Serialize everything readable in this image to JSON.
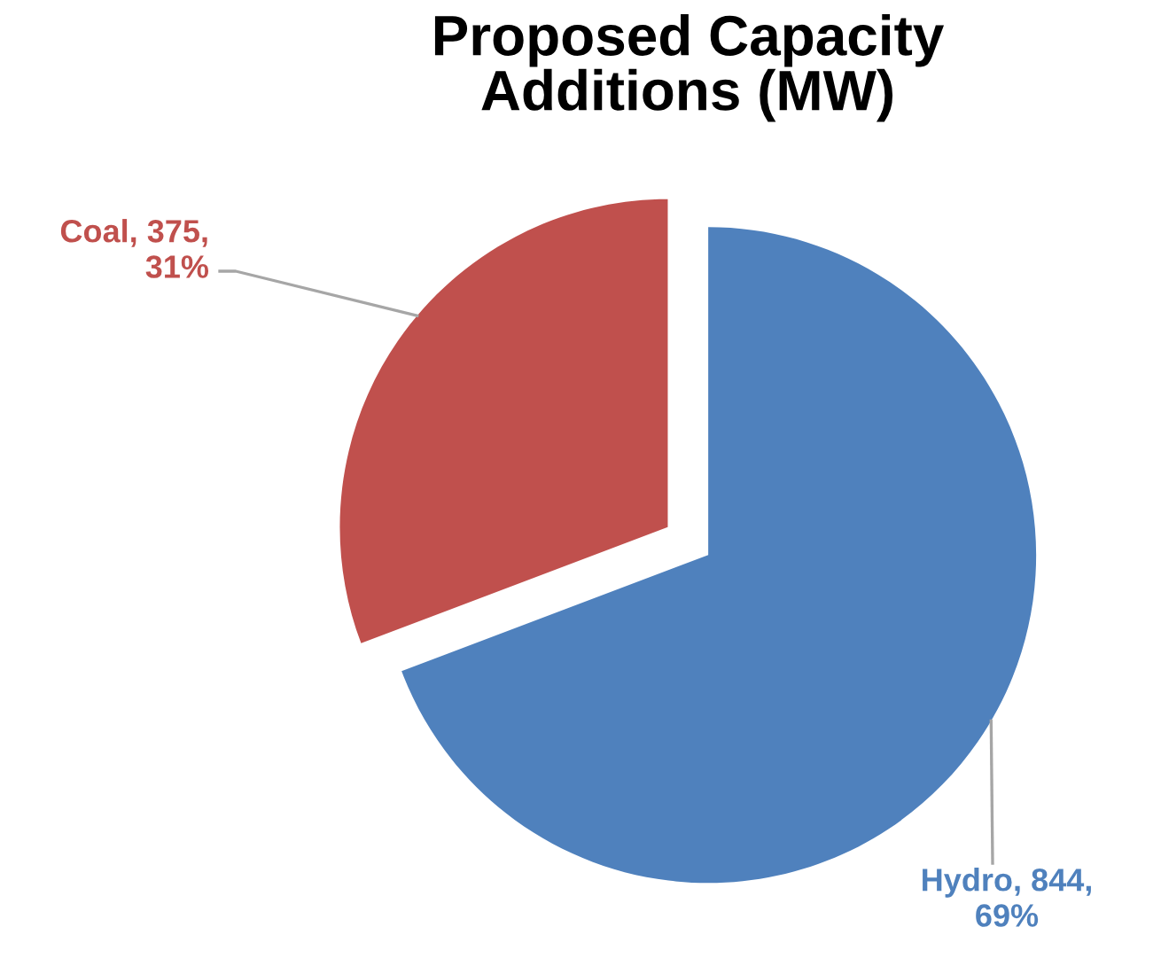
{
  "chart_data": {
    "type": "pie",
    "title": "Proposed Capacity\nAdditions (MW)",
    "categories": [
      "Coal",
      "Hydro"
    ],
    "values": [
      375,
      844
    ],
    "colors": [
      "#c0504d",
      "#4f81bd"
    ],
    "value_labels": [
      ", 375,\n31%",
      ", 844,\n69%"
    ]
  }
}
